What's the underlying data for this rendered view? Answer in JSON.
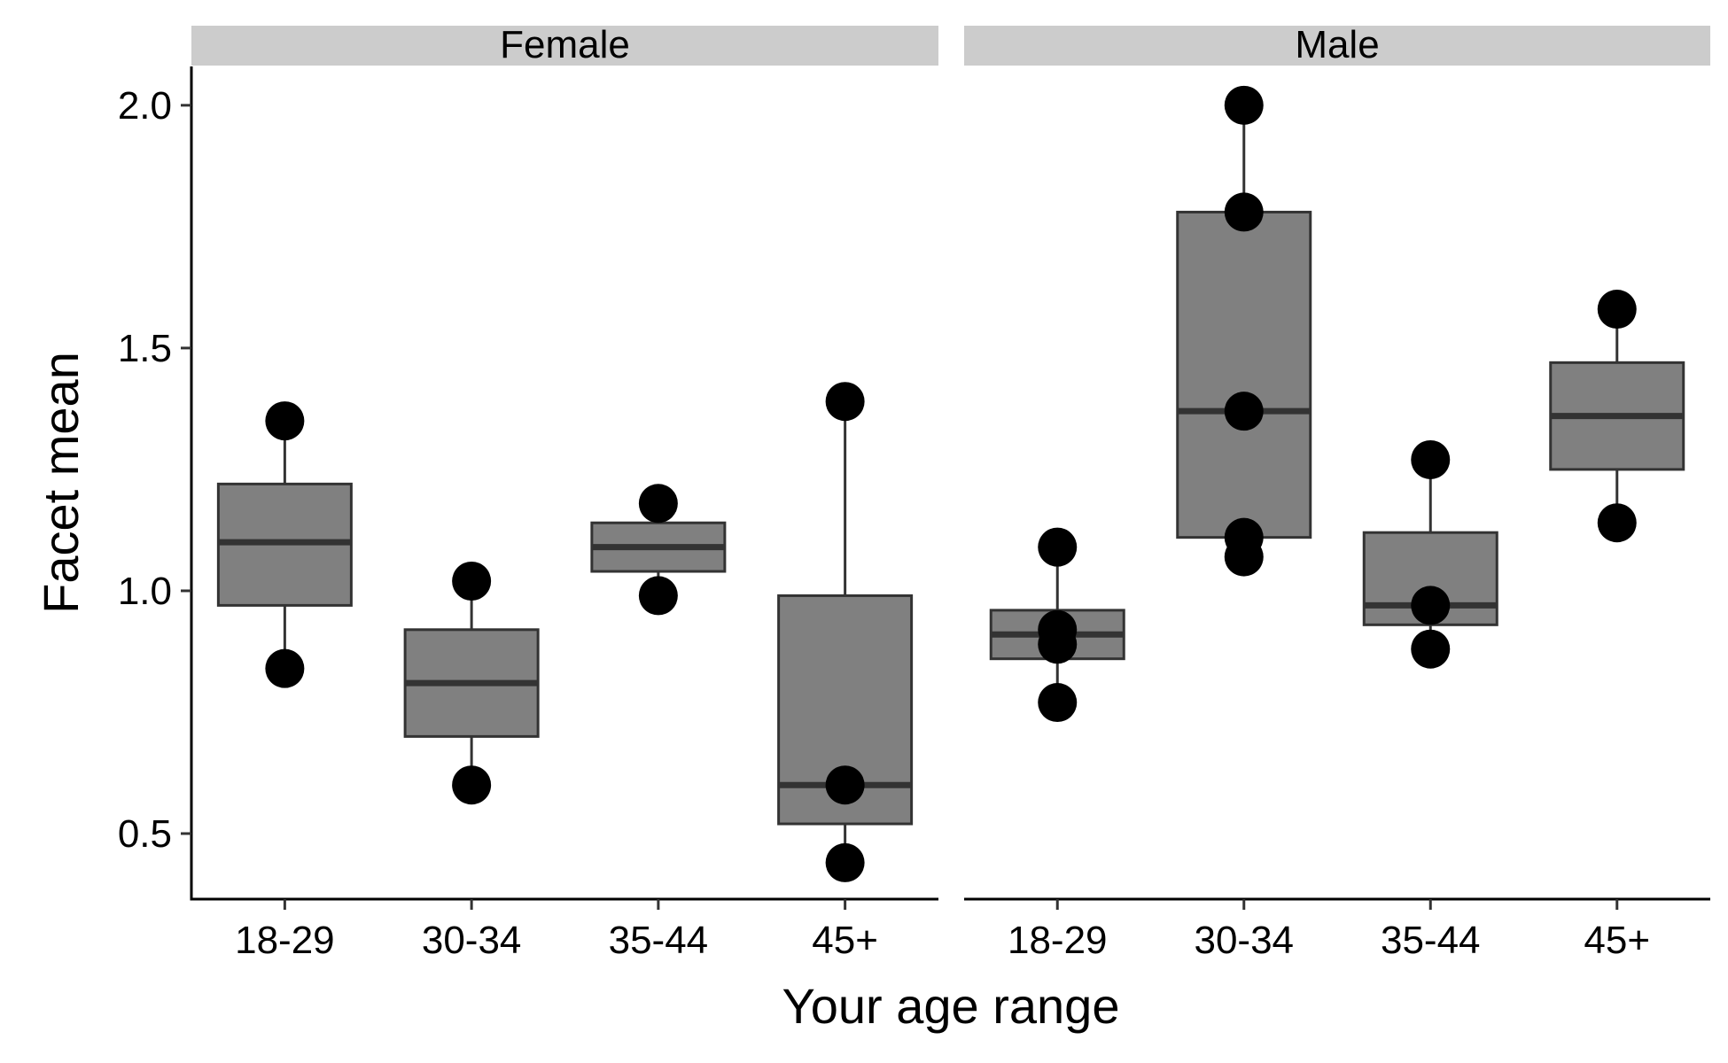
{
  "chart_data": {
    "type": "boxplot",
    "xlabel": "Your age range",
    "ylabel": "Facet mean",
    "ylim": [
      0.365,
      2.08
    ],
    "yticks": [
      0.5,
      1.0,
      1.5,
      2.0
    ],
    "ytick_labels": [
      "0.5",
      "1.0",
      "1.5",
      "2.0"
    ],
    "categories": [
      "18-29",
      "30-34",
      "35-44",
      "45+"
    ],
    "colors": {
      "box_fill": "#808080",
      "box_stroke": "#333333",
      "point": "#000000",
      "strip_bg": "#cccccc"
    },
    "panels": [
      {
        "label": "Female",
        "boxes": [
          {
            "category": "18-29",
            "lower_whisker": 0.84,
            "q1": 0.97,
            "median": 1.1,
            "q3": 1.22,
            "upper_whisker": 1.35,
            "points": [
              1.35,
              0.84
            ]
          },
          {
            "category": "30-34",
            "lower_whisker": 0.6,
            "q1": 0.7,
            "median": 0.81,
            "q3": 0.92,
            "upper_whisker": 1.02,
            "points": [
              1.02,
              0.6
            ]
          },
          {
            "category": "35-44",
            "lower_whisker": 0.99,
            "q1": 1.04,
            "median": 1.09,
            "q3": 1.14,
            "upper_whisker": 1.18,
            "points": [
              1.18,
              0.99
            ]
          },
          {
            "category": "45+",
            "lower_whisker": 0.44,
            "q1": 0.52,
            "median": 0.6,
            "q3": 0.99,
            "upper_whisker": 1.39,
            "points": [
              1.39,
              0.6,
              0.44
            ]
          }
        ]
      },
      {
        "label": "Male",
        "boxes": [
          {
            "category": "18-29",
            "lower_whisker": 0.77,
            "q1": 0.86,
            "median": 0.91,
            "q3": 0.96,
            "upper_whisker": 1.09,
            "points": [
              1.09,
              0.92,
              0.89,
              0.77
            ]
          },
          {
            "category": "30-34",
            "lower_whisker": 1.07,
            "q1": 1.11,
            "median": 1.37,
            "q3": 1.78,
            "upper_whisker": 2.0,
            "points": [
              2.0,
              1.78,
              1.37,
              1.11,
              1.07
            ]
          },
          {
            "category": "35-44",
            "lower_whisker": 0.88,
            "q1": 0.93,
            "median": 0.97,
            "q3": 1.12,
            "upper_whisker": 1.27,
            "points": [
              1.27,
              0.97,
              0.88
            ]
          },
          {
            "category": "45+",
            "lower_whisker": 1.14,
            "q1": 1.25,
            "median": 1.36,
            "q3": 1.47,
            "upper_whisker": 1.58,
            "points": [
              1.58,
              1.14
            ]
          }
        ]
      }
    ]
  }
}
